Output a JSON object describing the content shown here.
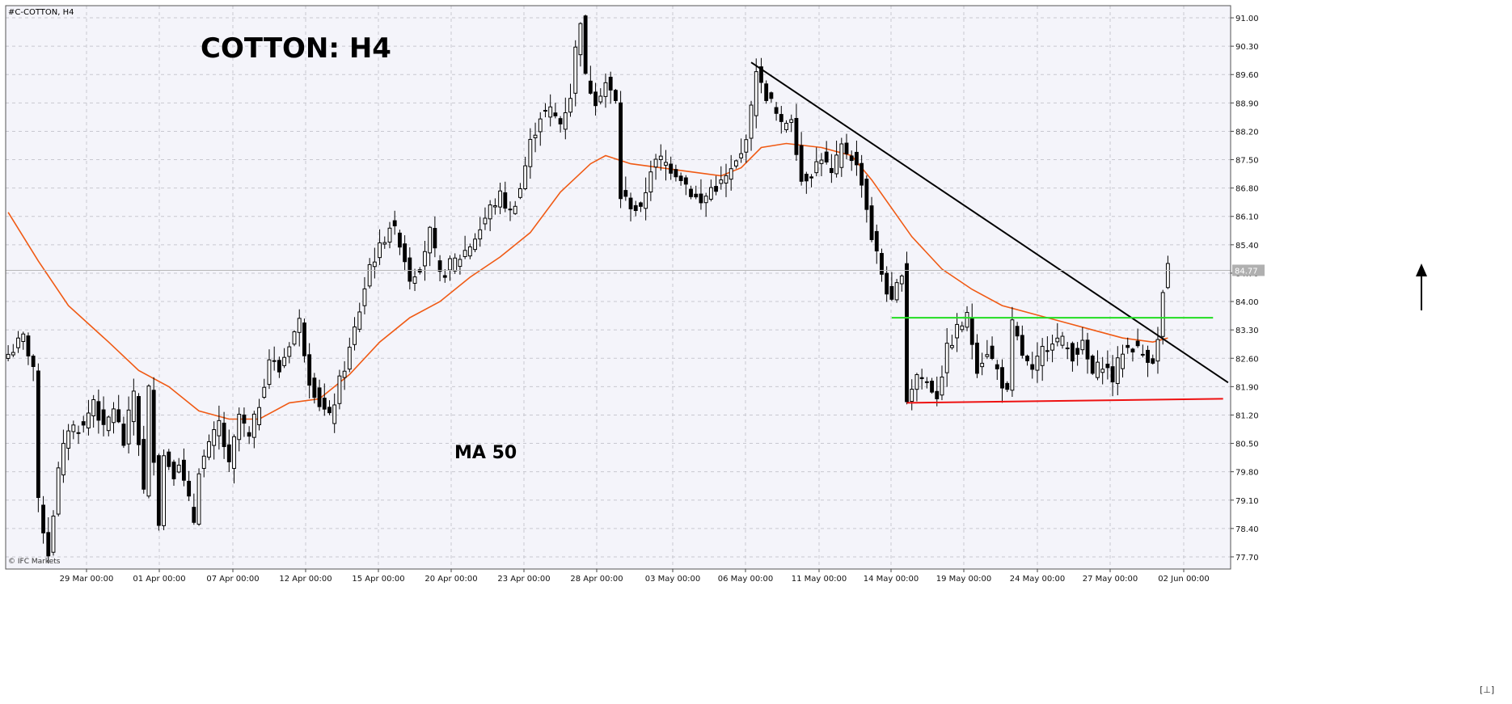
{
  "symbol_label": "#C-COTTON, H4",
  "watermark": "© IFC Markets",
  "corner_glyph": "[⊥]",
  "colors": {
    "background": "#ffffff",
    "plot_background": "#f4f4fa",
    "grid": "#c8c8d0",
    "candle": "#000000",
    "ma": "#f05a14",
    "trendline": "#000000",
    "resistance": "#22dd22",
    "support": "#ee1111",
    "price_tag": "#b0b0b0"
  },
  "chart_data": {
    "type": "candlestick",
    "title": "COTTON: H4",
    "ylim": [
      77.4,
      91.3
    ],
    "y_ticks": [
      "91.00",
      "90.30",
      "89.60",
      "88.90",
      "88.20",
      "87.50",
      "86.80",
      "86.10",
      "85.40",
      "84.70",
      "84.00",
      "83.30",
      "82.60",
      "81.90",
      "81.20",
      "80.50",
      "79.80",
      "79.10",
      "78.40",
      "77.70"
    ],
    "x_ticks": [
      "29 Mar 00:00",
      "01 Apr 00:00",
      "07 Apr 00:00",
      "12 Apr 00:00",
      "15 Apr 00:00",
      "20 Apr 00:00",
      "23 Apr 00:00",
      "28 Apr 00:00",
      "03 May 00:00",
      "06 May 00:00",
      "11 May 00:00",
      "14 May 00:00",
      "19 May 00:00",
      "24 May 00:00",
      "27 May 00:00",
      "02 Jun 00:00"
    ],
    "last_price": "84.77",
    "close_path": [
      [
        0,
        82.7
      ],
      [
        3,
        83.1
      ],
      [
        5,
        82.4
      ],
      [
        6,
        79.0
      ],
      [
        8,
        77.8
      ],
      [
        10,
        79.8
      ],
      [
        12,
        80.9
      ],
      [
        15,
        80.9
      ],
      [
        17,
        81.6
      ],
      [
        19,
        80.8
      ],
      [
        21,
        81.4
      ],
      [
        23,
        80.5
      ],
      [
        25,
        81.8
      ],
      [
        27,
        79.3
      ],
      [
        28,
        81.8
      ],
      [
        30,
        78.6
      ],
      [
        31,
        80.2
      ],
      [
        33,
        79.8
      ],
      [
        34,
        80.1
      ],
      [
        35,
        79.5
      ],
      [
        37,
        78.6
      ],
      [
        38,
        79.9
      ],
      [
        40,
        80.4
      ],
      [
        42,
        81.0
      ],
      [
        44,
        79.9
      ],
      [
        46,
        81.2
      ],
      [
        48,
        80.6
      ],
      [
        50,
        81.5
      ],
      [
        52,
        82.6
      ],
      [
        54,
        82.3
      ],
      [
        56,
        83.0
      ],
      [
        58,
        83.5
      ],
      [
        60,
        82.1
      ],
      [
        62,
        81.5
      ],
      [
        64,
        81.1
      ],
      [
        66,
        82.0
      ],
      [
        68,
        82.8
      ],
      [
        70,
        83.8
      ],
      [
        72,
        84.9
      ],
      [
        74,
        85.3
      ],
      [
        76,
        85.9
      ],
      [
        78,
        85.5
      ],
      [
        80,
        84.6
      ],
      [
        82,
        84.9
      ],
      [
        84,
        85.7
      ],
      [
        86,
        84.6
      ],
      [
        88,
        84.9
      ],
      [
        90,
        85.1
      ],
      [
        92,
        85.4
      ],
      [
        94,
        85.8
      ],
      [
        96,
        86.3
      ],
      [
        98,
        86.6
      ],
      [
        100,
        86.2
      ],
      [
        102,
        86.8
      ],
      [
        104,
        87.9
      ],
      [
        106,
        88.6
      ],
      [
        108,
        88.7
      ],
      [
        110,
        88.4
      ],
      [
        112,
        89.1
      ],
      [
        113,
        90.2
      ],
      [
        114,
        91.0
      ],
      [
        115,
        89.5
      ],
      [
        117,
        89.0
      ],
      [
        119,
        89.4
      ],
      [
        121,
        88.9
      ],
      [
        122,
        86.6
      ],
      [
        124,
        86.4
      ],
      [
        126,
        86.2
      ],
      [
        128,
        87.3
      ],
      [
        130,
        87.5
      ],
      [
        132,
        87.3
      ],
      [
        134,
        87.1
      ],
      [
        136,
        86.7
      ],
      [
        138,
        86.4
      ],
      [
        140,
        86.8
      ],
      [
        142,
        86.9
      ],
      [
        144,
        87.2
      ],
      [
        146,
        87.6
      ],
      [
        148,
        88.7
      ],
      [
        149,
        89.8
      ],
      [
        150,
        89.3
      ],
      [
        152,
        88.9
      ],
      [
        154,
        88.3
      ],
      [
        156,
        88.6
      ],
      [
        158,
        87.0
      ],
      [
        160,
        87.2
      ],
      [
        162,
        87.6
      ],
      [
        164,
        87.1
      ],
      [
        166,
        87.8
      ],
      [
        168,
        87.6
      ],
      [
        170,
        87.0
      ],
      [
        172,
        85.6
      ],
      [
        174,
        84.7
      ],
      [
        176,
        83.9
      ],
      [
        178,
        84.8
      ],
      [
        179,
        81.6
      ],
      [
        181,
        82.2
      ],
      [
        183,
        82.0
      ],
      [
        185,
        81.7
      ],
      [
        187,
        82.8
      ],
      [
        189,
        83.3
      ],
      [
        191,
        83.6
      ],
      [
        193,
        82.4
      ],
      [
        195,
        82.8
      ],
      [
        197,
        82.3
      ],
      [
        199,
        81.7
      ],
      [
        200,
        83.4
      ],
      [
        202,
        82.7
      ],
      [
        204,
        82.2
      ],
      [
        206,
        82.8
      ],
      [
        208,
        83.1
      ],
      [
        210,
        83.0
      ],
      [
        212,
        82.7
      ],
      [
        214,
        82.9
      ],
      [
        216,
        82.2
      ],
      [
        218,
        82.5
      ],
      [
        220,
        82.1
      ],
      [
        222,
        82.8
      ],
      [
        224,
        82.9
      ],
      [
        226,
        82.7
      ],
      [
        228,
        82.6
      ],
      [
        229,
        83.0
      ],
      [
        230,
        84.2
      ],
      [
        231,
        84.8
      ]
    ],
    "ma_path": [
      [
        0,
        86.2
      ],
      [
        6,
        85.0
      ],
      [
        12,
        83.9
      ],
      [
        20,
        83.0
      ],
      [
        26,
        82.3
      ],
      [
        32,
        81.9
      ],
      [
        38,
        81.3
      ],
      [
        44,
        81.1
      ],
      [
        50,
        81.1
      ],
      [
        56,
        81.5
      ],
      [
        62,
        81.6
      ],
      [
        68,
        82.2
      ],
      [
        74,
        83.0
      ],
      [
        80,
        83.6
      ],
      [
        86,
        84.0
      ],
      [
        92,
        84.6
      ],
      [
        98,
        85.1
      ],
      [
        104,
        85.7
      ],
      [
        110,
        86.7
      ],
      [
        116,
        87.4
      ],
      [
        119,
        87.6
      ],
      [
        124,
        87.4
      ],
      [
        130,
        87.3
      ],
      [
        136,
        87.2
      ],
      [
        142,
        87.1
      ],
      [
        146,
        87.3
      ],
      [
        150,
        87.8
      ],
      [
        155,
        87.9
      ],
      [
        162,
        87.8
      ],
      [
        168,
        87.6
      ],
      [
        172,
        87.0
      ],
      [
        176,
        86.3
      ],
      [
        180,
        85.6
      ],
      [
        186,
        84.8
      ],
      [
        192,
        84.3
      ],
      [
        198,
        83.9
      ],
      [
        204,
        83.7
      ],
      [
        210,
        83.5
      ],
      [
        216,
        83.3
      ],
      [
        222,
        83.1
      ],
      [
        228,
        83.0
      ],
      [
        231,
        83.1
      ]
    ],
    "annotations": {
      "ma_label": "MA 50",
      "trendline": {
        "from": [
          148,
          89.9
        ],
        "to": [
          243,
          82.0
        ]
      },
      "resistance": {
        "from": [
          176,
          83.6
        ],
        "to": [
          240,
          83.6
        ]
      },
      "support": {
        "from": [
          179,
          81.5
        ],
        "to": [
          242,
          81.6
        ]
      },
      "arrow_direction": "up"
    }
  }
}
